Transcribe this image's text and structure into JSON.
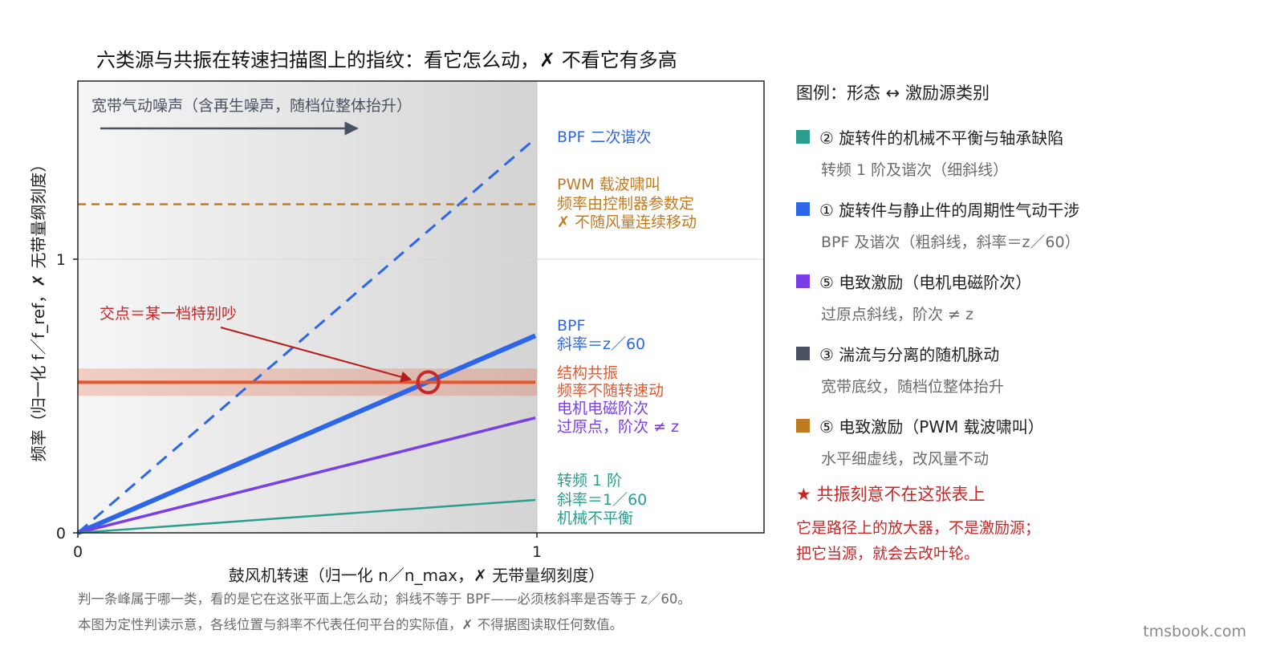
{
  "chart_data": {
    "type": "line",
    "title": "六类源与共振在转速扫描图上的指纹：看它怎么动，✗ 不看它有多高",
    "xlabel": "鼓风机转速（归一化 n／n_max，✗ 无带量纲刻度）",
    "ylabel": "频率（归一化 f／f_ref，✗ 无带量纲刻度）",
    "xlim": [
      0,
      1.5
    ],
    "ylim": [
      0,
      1.65
    ],
    "xticks": [
      "0",
      "1"
    ],
    "yticks": [
      "0",
      "1"
    ],
    "grid": "horizontal at y = 1",
    "broadband_region": {
      "x": [
        0,
        1
      ],
      "label": "宽带气动噪声（含再生噪声，随档位整体抬升）"
    },
    "series": [
      {
        "name": "BPF 二次谐次",
        "color": "#2d66e8",
        "style": "dashed",
        "x": [
          0,
          1
        ],
        "y": [
          0,
          1.44
        ]
      },
      {
        "name": "PWM 载波啸叫",
        "color": "#c07a22",
        "style": "dashed",
        "x": [
          0,
          1
        ],
        "y": [
          1.2,
          1.2
        ]
      },
      {
        "name": "BPF",
        "color": "#2d66e8",
        "style": "solid-thick",
        "x": [
          0,
          1
        ],
        "y": [
          0,
          0.72
        ]
      },
      {
        "name": "结构共振",
        "color": "#e4572e",
        "style": "solid",
        "x": [
          0,
          1
        ],
        "y": [
          0.55,
          0.55
        ],
        "band": [
          0.5,
          0.6
        ]
      },
      {
        "name": "电机电磁阶次",
        "color": "#7b3ee6",
        "style": "solid",
        "x": [
          0,
          1
        ],
        "y": [
          0,
          0.42
        ]
      },
      {
        "name": "转频 1 阶",
        "color": "#2a9d8f",
        "style": "solid-thin",
        "x": [
          0,
          1
        ],
        "y": [
          0,
          0.12
        ]
      }
    ],
    "crossing_marker": {
      "x": 0.766,
      "y": 0.55,
      "color": "#c62828"
    },
    "annotations": {
      "crossing_text": "交点＝某一档特别吵",
      "bpf2": [
        "BPF 二次谐次"
      ],
      "pwm": [
        "PWM 载波啸叫",
        "频率由控制器参数定",
        "✗ 不随风量连续移动"
      ],
      "bpf": [
        "BPF",
        "斜率＝z／60"
      ],
      "resonance": [
        "结构共振",
        "频率不随转速动"
      ],
      "motor": [
        "电机电磁阶次",
        "过原点，阶次 ≠ z"
      ],
      "rotor": [
        "转频 1 阶",
        "斜率＝1／60",
        "机械不平衡"
      ]
    }
  },
  "legend": {
    "title": "图例：形态 ↔ 激励源类别",
    "items": [
      {
        "color": "#2a9d8f",
        "label": "② 旋转件的机械不平衡与轴承缺陷",
        "sub": "转频 1 阶及谐次（细斜线）"
      },
      {
        "color": "#2d66e8",
        "label": "① 旋转件与静止件的周期性气动干涉",
        "sub": "BPF 及谐次（粗斜线，斜率＝z／60）"
      },
      {
        "color": "#7b3ee6",
        "label": "⑤ 电致激励（电机电磁阶次）",
        "sub": "过原点斜线，阶次 ≠ z"
      },
      {
        "color": "#4a5261",
        "label": "③ 湍流与分离的随机脉动",
        "sub": "宽带底纹，随档位整体抬升"
      },
      {
        "color": "#c07a22",
        "label": "⑤ 电致激励（PWM 载波啸叫）",
        "sub": "水平细虚线，改风量不动"
      }
    ],
    "star": "★ 共振刻意不在这张表上",
    "note_lines": [
      "它是路径上的放大器，不是激励源；",
      "把它当源，就会去改叶轮。"
    ]
  },
  "footnotes": [
    "判一条峰属于哪一类，看的是它在这张平面上怎么动；斜线不等于 BPF——必须核斜率是否等于 z／60。",
    "本图为定性判读示意，各线位置与斜率不代表任何平台的实际值，✗ 不得据图读取任何数值。"
  ],
  "watermark": "tmsbook.com"
}
